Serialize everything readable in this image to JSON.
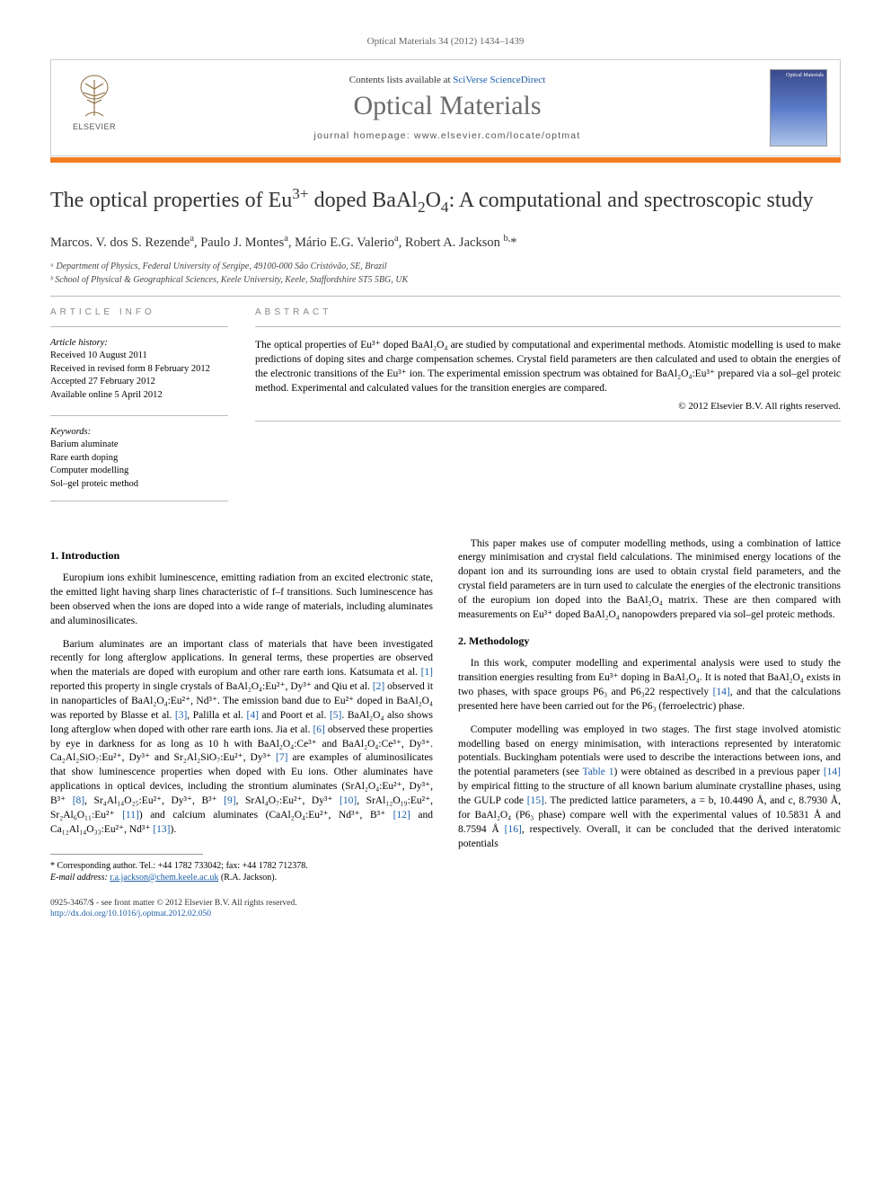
{
  "journal_ref": "Optical Materials 34 (2012) 1434–1439",
  "header": {
    "contents_prefix": "Contents lists available at ",
    "contents_link": "SciVerse ScienceDirect",
    "journal_title": "Optical Materials",
    "homepage_prefix": "journal homepage: ",
    "homepage": "www.elsevier.com/locate/optmat",
    "publisher_label": "ELSEVIER",
    "cover_label": "Optical Materials"
  },
  "title_parts": {
    "p1": "The optical properties of Eu",
    "sup1": "3+",
    "p2": " doped BaAl",
    "sub1": "2",
    "p3": "O",
    "sub2": "4",
    "p4": ": A computational and spectroscopic study"
  },
  "authors_html": "Marcos. V. dos S. Rezende<sup>a</sup>, Paulo J. Montes<sup>a</sup>, Mário E.G. Valerio<sup>a</sup>, Robert A. Jackson <sup>b,</sup>*",
  "affiliations": [
    "ᵃ Department of Physics, Federal University of Sergipe, 49100-000 São Cristóvão, SE, Brazil",
    "ᵇ School of Physical & Geographical Sciences, Keele University, Keele, Staffordshire ST5 5BG, UK"
  ],
  "info": {
    "head": "ARTICLE INFO",
    "history_label": "Article history:",
    "history": [
      "Received 10 August 2011",
      "Received in revised form 8 February 2012",
      "Accepted 27 February 2012",
      "Available online 5 April 2012"
    ],
    "keywords_label": "Keywords:",
    "keywords": [
      "Barium aluminate",
      "Rare earth doping",
      "Computer modelling",
      "Sol–gel proteic method"
    ]
  },
  "abstract": {
    "head": "ABSTRACT",
    "text": "The optical properties of Eu³⁺ doped BaAl₂O₄ are studied by computational and experimental methods. Atomistic modelling is used to make predictions of doping sites and charge compensation schemes. Crystal field parameters are then calculated and used to obtain the energies of the electronic transitions of the Eu³⁺ ion. The experimental emission spectrum was obtained for BaAl₂O₄:Eu³⁺ prepared via a sol–gel proteic method. Experimental and calculated values for the transition energies are compared.",
    "copyright": "© 2012 Elsevier B.V. All rights reserved."
  },
  "sections": {
    "s1_head": "1. Introduction",
    "s1_p1": "Europium ions exhibit luminescence, emitting radiation from an excited electronic state, the emitted light having sharp lines characteristic of f–f transitions. Such luminescence has been observed when the ions are doped into a wide range of materials, including aluminates and aluminosilicates.",
    "s1_p2": "Barium aluminates are an important class of materials that have been investigated recently for long afterglow applications. In general terms, these properties are observed when the materials are doped with europium and other rare earth ions. Katsumata et al. [1] reported this property in single crystals of BaAl₂O₄:Eu²⁺, Dy³⁺ and Qiu et al. [2] observed it in nanoparticles of BaAl₂O₄:Eu²⁺, Nd³⁺. The emission band due to Eu²⁺ doped in BaAl₂O₄ was reported by Blasse et al. [3], Palilla et al. [4] and Poort et al. [5]. BaAl₂O₄ also shows long afterglow when doped with other rare earth ions. Jia et al. [6] observed these properties by eye in darkness for as long as 10 h with BaAl₂O₄:Ce³⁺ and BaAl₂O₄:Ce³⁺, Dy³⁺. Ca₂Al₂SiO₇:Eu²⁺, Dy³⁺ and Sr₂Al₂SiO₇:Eu²⁺, Dy³⁺ [7] are examples of aluminosilicates that show luminescence properties when doped with Eu ions. Other aluminates have applications in optical devices, including the strontium aluminates (SrAl₂O₄:Eu²⁺, Dy³⁺, B³⁺ [8], Sr₄Al₁₄O₂₅:Eu²⁺, Dy³⁺, B³⁺ [9], SrAl₄O₇:Eu²⁺, Dy³⁺ [10], SrAl₁₂O₁₉:Eu²⁺, Sr₂Al₆O₁₁:Eu²⁺ [11]) and calcium aluminates (CaAl₂O₄:Eu²⁺, Nd³⁺, B³⁺ [12] and Ca₁₂Al₁₄O₃₃:Eu²⁺, Nd³⁺ [13]).",
    "s1_p3": "This paper makes use of computer modelling methods, using a combination of lattice energy minimisation and crystal field calculations. The minimised energy locations of the dopant ion and its surrounding ions are used to obtain crystal field parameters, and the crystal field parameters are in turn used to calculate the energies of the electronic transitions of the europium ion doped into the BaAl₂O₄ matrix. These are then compared with measurements on Eu³⁺ doped BaAl₂O₄ nanopowders prepared via sol–gel proteic methods.",
    "s2_head": "2. Methodology",
    "s2_p1": "In this work, computer modelling and experimental analysis were used to study the transition energies resulting from Eu³⁺ doping in BaAl₂O₄. It is noted that BaAl₂O₄ exists in two phases, with space groups P6₃ and P6₃22 respectively [14], and that the calculations presented here have been carried out for the P6₃ (ferroelectric) phase.",
    "s2_p2": "Computer modelling was employed in two stages. The first stage involved atomistic modelling based on energy minimisation, with interactions represented by interatomic potentials. Buckingham potentials were used to describe the interactions between ions, and the potential parameters (see Table 1) were obtained as described in a previous paper [14] by empirical fitting to the structure of all known barium aluminate crystalline phases, using the GULP code [15]. The predicted lattice parameters, a = b, 10.4490 Å, and c, 8.7930 Å, for BaAl₂O₄ (P6₃ phase) compare well with the experimental values of 10.5831 Å and 8.7594 Å [16], respectively. Overall, it can be concluded that the derived interatomic potentials"
  },
  "footnote": {
    "corr": "* Corresponding author. Tel.: +44 1782 733042; fax: +44 1782 712378.",
    "email_label": "E-mail address: ",
    "email": "r.a.jackson@chem.keele.ac.uk",
    "email_suffix": " (R.A. Jackson)."
  },
  "bottom": {
    "line1": "0925-3467/$ - see front matter © 2012 Elsevier B.V. All rights reserved.",
    "doi_label": "http://dx.doi.org/",
    "doi": "10.1016/j.optmat.2012.02.050"
  },
  "colors": {
    "accent_orange": "#f47c20",
    "link_blue": "#1a5da8",
    "muted_gray": "#6b6b6b"
  }
}
